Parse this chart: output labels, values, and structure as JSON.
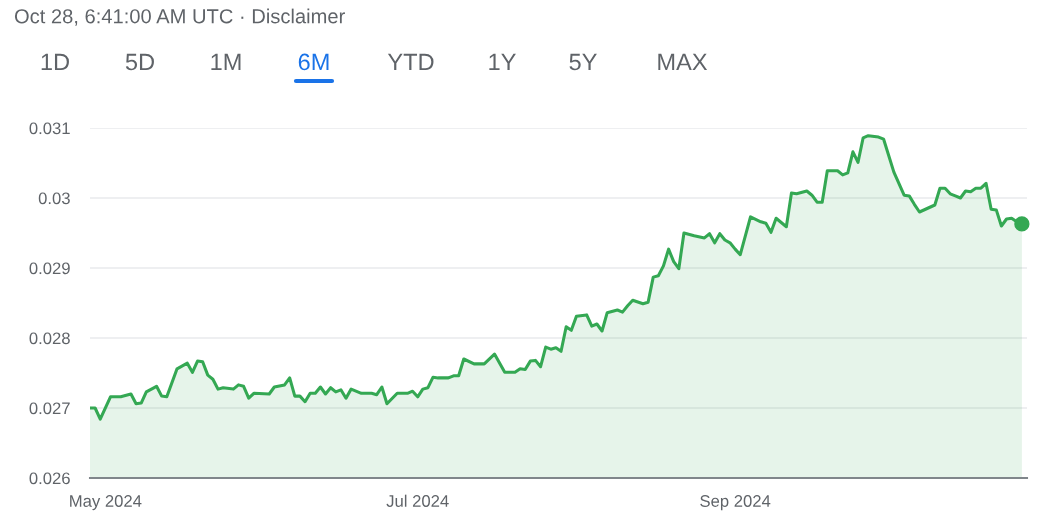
{
  "chart_data": {
    "type": "area",
    "title": "Oct 28, 6:41:00 AM UTC · Disclaimer",
    "annotations": [
      "1D",
      "5D",
      "1M",
      "6M",
      "YTD",
      "1Y",
      "5Y",
      "MAX"
    ],
    "series": [
      {
        "color": "#34a853",
        "type": "area",
        "x": [
          "2024-04-28",
          "2024-04-29",
          "2024-04-30",
          "2024-05-02",
          "2024-05-04",
          "2024-05-06",
          "2024-05-07",
          "2024-05-08",
          "2024-05-09",
          "2024-05-11",
          "2024-05-12",
          "2024-05-13",
          "2024-05-15",
          "2024-05-17",
          "2024-05-18",
          "2024-05-19",
          "2024-05-20",
          "2024-05-21",
          "2024-05-22",
          "2024-05-23",
          "2024-05-24",
          "2024-05-26",
          "2024-05-27",
          "2024-05-28",
          "2024-05-29",
          "2024-05-30",
          "2024-06-02",
          "2024-06-03",
          "2024-06-05",
          "2024-06-06",
          "2024-06-07",
          "2024-06-08",
          "2024-06-09",
          "2024-06-10",
          "2024-06-11",
          "2024-06-12",
          "2024-06-13",
          "2024-06-14",
          "2024-06-15",
          "2024-06-16",
          "2024-06-17",
          "2024-06-18",
          "2024-06-20",
          "2024-06-22",
          "2024-06-23",
          "2024-06-24",
          "2024-06-25",
          "2024-06-27",
          "2024-06-29",
          "2024-06-30",
          "2024-07-01",
          "2024-07-02",
          "2024-07-03",
          "2024-07-04",
          "2024-07-05",
          "2024-07-07",
          "2024-07-08",
          "2024-07-09",
          "2024-07-10",
          "2024-07-12",
          "2024-07-14",
          "2024-07-16",
          "2024-07-18",
          "2024-07-20",
          "2024-07-21",
          "2024-07-22",
          "2024-07-23",
          "2024-07-24",
          "2024-07-25",
          "2024-07-26",
          "2024-07-27",
          "2024-07-28",
          "2024-07-29",
          "2024-07-30",
          "2024-07-31",
          "2024-08-01",
          "2024-08-03",
          "2024-08-04",
          "2024-08-05",
          "2024-08-06",
          "2024-08-07",
          "2024-08-09",
          "2024-08-10",
          "2024-08-11",
          "2024-08-12",
          "2024-08-14",
          "2024-08-15",
          "2024-08-16",
          "2024-08-17",
          "2024-08-18",
          "2024-08-19",
          "2024-08-20",
          "2024-08-21",
          "2024-08-22",
          "2024-08-24",
          "2024-08-26",
          "2024-08-27",
          "2024-08-28",
          "2024-08-29",
          "2024-08-30",
          "2024-08-31",
          "2024-09-01",
          "2024-09-02",
          "2024-09-04",
          "2024-09-06",
          "2024-09-07",
          "2024-09-08",
          "2024-09-09",
          "2024-09-11",
          "2024-09-12",
          "2024-09-13",
          "2024-09-15",
          "2024-09-16",
          "2024-09-17",
          "2024-09-18",
          "2024-09-19",
          "2024-09-21",
          "2024-09-22",
          "2024-09-23",
          "2024-09-24",
          "2024-09-25",
          "2024-09-26",
          "2024-09-27",
          "2024-09-29",
          "2024-09-30",
          "2024-10-02",
          "2024-10-04",
          "2024-10-05",
          "2024-10-06",
          "2024-10-07",
          "2024-10-10",
          "2024-10-11",
          "2024-10-12",
          "2024-10-13",
          "2024-10-14",
          "2024-10-15",
          "2024-10-16",
          "2024-10-17",
          "2024-10-18",
          "2024-10-19",
          "2024-10-20",
          "2024-10-21",
          "2024-10-22",
          "2024-10-23",
          "2024-10-24",
          "2024-10-25",
          "2024-10-26",
          "2024-10-27"
        ],
        "values": [
          0.027,
          0.027,
          0.02684,
          0.02716,
          0.02716,
          0.0272,
          0.02706,
          0.02707,
          0.02723,
          0.02731,
          0.02717,
          0.02716,
          0.02756,
          0.02764,
          0.02751,
          0.02767,
          0.02766,
          0.02747,
          0.02741,
          0.02727,
          0.02729,
          0.02727,
          0.02733,
          0.02731,
          0.02714,
          0.02721,
          0.0272,
          0.0273,
          0.02733,
          0.02743,
          0.02717,
          0.02717,
          0.02709,
          0.02721,
          0.02721,
          0.0273,
          0.0272,
          0.02729,
          0.02723,
          0.02726,
          0.02714,
          0.02727,
          0.02721,
          0.02721,
          0.02719,
          0.0273,
          0.02706,
          0.02721,
          0.02721,
          0.02724,
          0.02716,
          0.02727,
          0.02729,
          0.02744,
          0.02743,
          0.02743,
          0.02746,
          0.02746,
          0.0277,
          0.02763,
          0.02763,
          0.02777,
          0.02751,
          0.02751,
          0.02756,
          0.02755,
          0.02767,
          0.02768,
          0.02759,
          0.02787,
          0.02784,
          0.02786,
          0.02781,
          0.02816,
          0.02811,
          0.02831,
          0.02833,
          0.02817,
          0.0282,
          0.0281,
          0.02836,
          0.0284,
          0.02837,
          0.02846,
          0.02854,
          0.02849,
          0.02851,
          0.02887,
          0.02889,
          0.02903,
          0.02927,
          0.02909,
          0.02899,
          0.0295,
          0.02946,
          0.02943,
          0.02949,
          0.02936,
          0.02949,
          0.0294,
          0.02936,
          0.02927,
          0.02919,
          0.02973,
          0.02966,
          0.02964,
          0.02951,
          0.02971,
          0.02959,
          0.03007,
          0.03006,
          0.0301,
          0.03004,
          0.02994,
          0.02994,
          0.03039,
          0.03039,
          0.03033,
          0.03036,
          0.03066,
          0.03051,
          0.03086,
          0.03089,
          0.03087,
          0.03084,
          0.03037,
          0.03004,
          0.03003,
          0.02991,
          0.0298,
          0.0299,
          0.03014,
          0.03014,
          0.03006,
          0.03003,
          0.03,
          0.0301,
          0.03009,
          0.03014,
          0.03014,
          0.03021,
          0.02984,
          0.02983,
          0.0296,
          0.0297,
          0.02971,
          0.02966,
          0.02963
        ]
      },
      {
        "color": "#34a853",
        "type": "scatter",
        "x": [
          "2024-10-27"
        ],
        "values": [
          0.02963
        ]
      }
    ],
    "xlim": [
      "2024-04-28",
      "2024-10-28"
    ],
    "xticks": [
      {
        "value": "2024-05-01",
        "label": "May 2024"
      },
      {
        "value": "2024-07-01",
        "label": "Jul 2024"
      },
      {
        "value": "2024-09-01",
        "label": "Sep 2024"
      }
    ],
    "ylim": [
      0.026,
      0.031
    ],
    "yticks": [
      {
        "value": 0.026,
        "label": "0.026"
      },
      {
        "value": 0.027,
        "label": "0.027"
      },
      {
        "value": 0.028,
        "label": "0.028"
      },
      {
        "value": 0.029,
        "label": "0.029"
      },
      {
        "value": 0.03,
        "label": "0.03"
      },
      {
        "value": 0.031,
        "label": "0.031"
      }
    ],
    "grid": "y",
    "legend": false
  }
}
